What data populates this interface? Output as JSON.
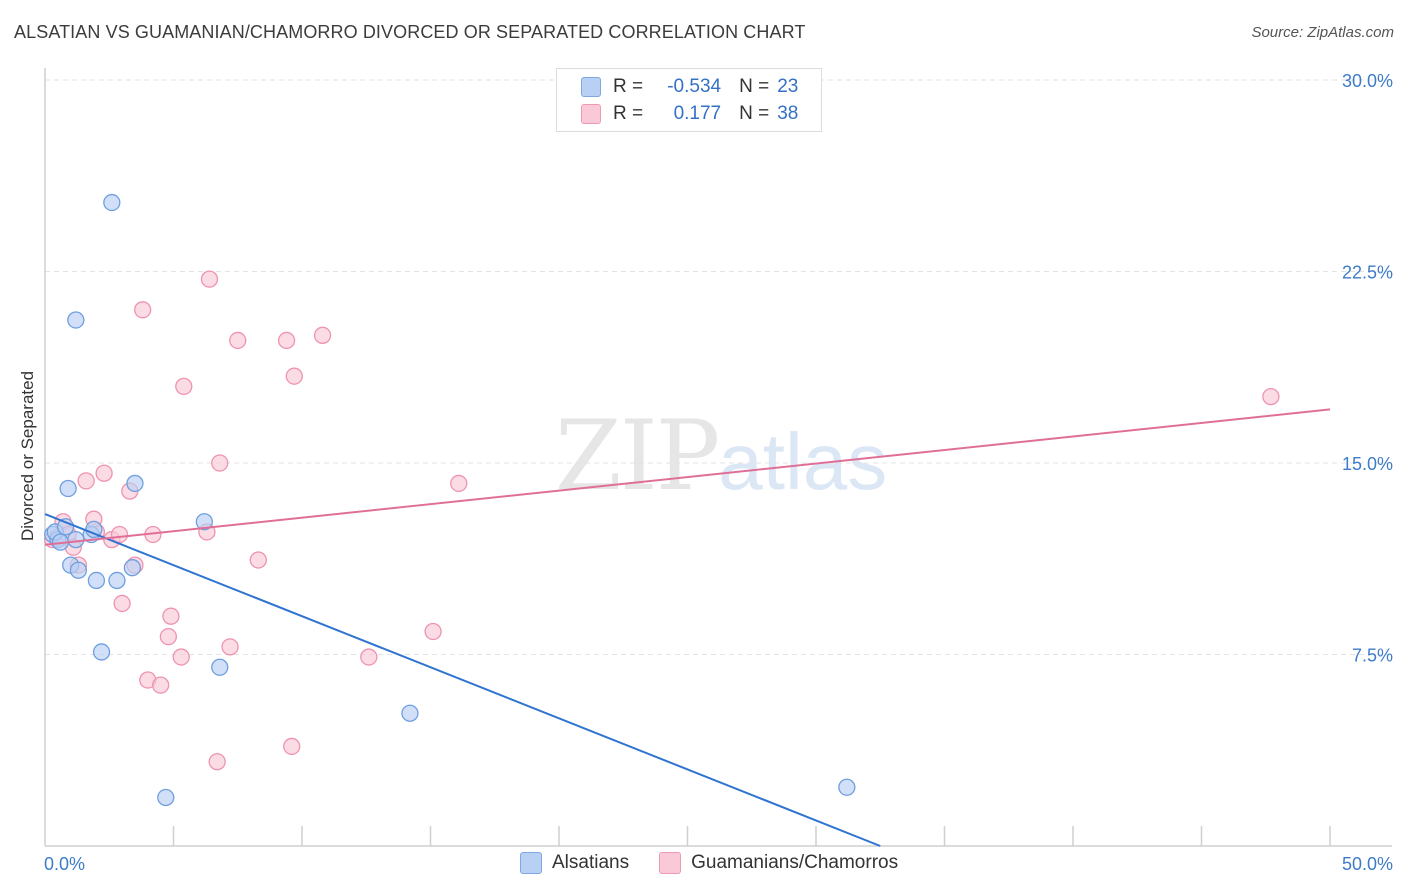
{
  "header": {
    "title": "ALSATIAN VS GUAMANIAN/CHAMORRO DIVORCED OR SEPARATED CORRELATION CHART",
    "source": "Source: ZipAtlas.com"
  },
  "watermark": {
    "zip": "ZIP",
    "atlas": "atlas"
  },
  "legend": {
    "rows": [
      {
        "r_label": "R =",
        "r_value": "-0.534",
        "n_label": "N =",
        "n_value": "23"
      },
      {
        "r_label": "R =",
        "r_value": "0.177",
        "n_label": "N =",
        "n_value": "38"
      }
    ]
  },
  "colors": {
    "blue_fill": "#b8d0f4",
    "blue_stroke": "#6f9fde",
    "blue_line": "#2f74d0",
    "pink_fill": "#f9c9d7",
    "pink_stroke": "#ee93b0",
    "pink_line": "#e06f98",
    "tick_text": "#3d7cc9",
    "grid": "#e3e3e3"
  },
  "chart_data": {
    "type": "scatter",
    "title": "ALSATIAN VS GUAMANIAN/CHAMORRO DIVORCED OR SEPARATED CORRELATION CHART",
    "xlabel": "",
    "ylabel": "Divorced or Separated",
    "xlim": [
      0,
      50
    ],
    "ylim": [
      0,
      30
    ],
    "x_tick_labels": [
      "0.0%",
      "50.0%"
    ],
    "y_ticks": [
      {
        "value": 30,
        "label": "30.0%"
      },
      {
        "value": 22.5,
        "label": "22.5%"
      },
      {
        "value": 15,
        "label": "15.0%"
      },
      {
        "value": 7.5,
        "label": "7.5%"
      }
    ],
    "series": [
      {
        "name": "Alsatians",
        "color": "blue",
        "points": [
          [
            0.3,
            12.2
          ],
          [
            0.5,
            12.0
          ],
          [
            0.4,
            12.3
          ],
          [
            0.8,
            12.5
          ],
          [
            1.2,
            12.0
          ],
          [
            0.9,
            14.0
          ],
          [
            1.0,
            11.0
          ],
          [
            1.3,
            10.8
          ],
          [
            1.8,
            12.2
          ],
          [
            2.0,
            10.4
          ],
          [
            2.2,
            7.6
          ],
          [
            2.8,
            10.4
          ],
          [
            1.2,
            20.6
          ],
          [
            2.6,
            25.2
          ],
          [
            3.4,
            10.9
          ],
          [
            3.5,
            14.2
          ],
          [
            6.2,
            12.7
          ],
          [
            6.8,
            7.0
          ],
          [
            14.2,
            5.2
          ],
          [
            4.7,
            1.9
          ],
          [
            31.2,
            2.3
          ],
          [
            0.6,
            11.9
          ],
          [
            1.9,
            12.4
          ]
        ],
        "trend": {
          "x": [
            0,
            32.5
          ],
          "y": [
            13.0,
            0
          ]
        }
      },
      {
        "name": "Guamanians/Chamorros",
        "color": "pink",
        "points": [
          [
            0.3,
            12.0
          ],
          [
            0.5,
            12.1
          ],
          [
            0.7,
            12.7
          ],
          [
            0.9,
            12.2
          ],
          [
            1.1,
            11.7
          ],
          [
            1.3,
            11.0
          ],
          [
            1.6,
            14.3
          ],
          [
            2.0,
            12.3
          ],
          [
            2.3,
            14.6
          ],
          [
            2.6,
            12.0
          ],
          [
            1.9,
            12.8
          ],
          [
            2.9,
            12.2
          ],
          [
            3.0,
            9.5
          ],
          [
            3.3,
            13.9
          ],
          [
            3.5,
            11.0
          ],
          [
            3.8,
            21.0
          ],
          [
            4.2,
            12.2
          ],
          [
            4.8,
            8.2
          ],
          [
            4.9,
            9.0
          ],
          [
            5.3,
            7.4
          ],
          [
            4.0,
            6.5
          ],
          [
            4.5,
            6.3
          ],
          [
            5.4,
            18.0
          ],
          [
            6.3,
            12.3
          ],
          [
            6.4,
            22.2
          ],
          [
            6.7,
            3.3
          ],
          [
            6.8,
            15.0
          ],
          [
            7.2,
            7.8
          ],
          [
            7.5,
            19.8
          ],
          [
            8.3,
            11.2
          ],
          [
            9.4,
            19.8
          ],
          [
            9.6,
            3.9
          ],
          [
            9.7,
            18.4
          ],
          [
            10.8,
            20.0
          ],
          [
            12.6,
            7.4
          ],
          [
            15.1,
            8.4
          ],
          [
            16.1,
            14.2
          ],
          [
            47.7,
            17.6
          ]
        ],
        "trend": {
          "x": [
            0,
            50
          ],
          "y": [
            11.8,
            17.1
          ]
        }
      }
    ],
    "legend_position": "top-center"
  }
}
